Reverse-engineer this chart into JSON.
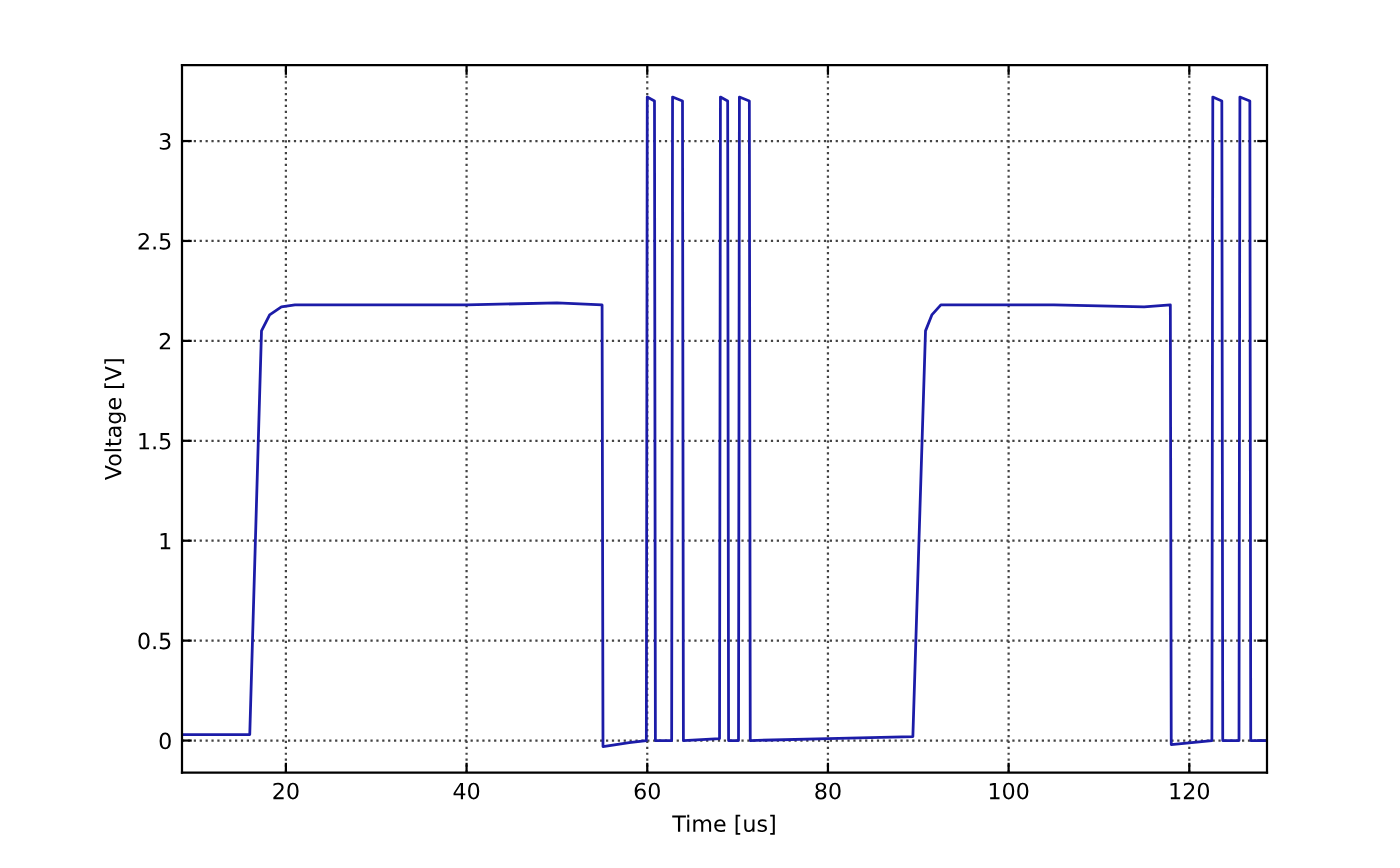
{
  "chart_data": {
    "type": "line",
    "xlabel": "Time [us]",
    "ylabel": "Voltage [V]",
    "xlim": [
      8.5,
      128.6
    ],
    "ylim": [
      -0.16,
      3.38
    ],
    "xticks": [
      20,
      40,
      60,
      80,
      100,
      120
    ],
    "yticks": [
      0,
      0.5,
      1,
      1.5,
      2,
      2.5,
      3
    ],
    "grid": true,
    "line_style": "solid",
    "marker": "none",
    "series": [
      {
        "color": "#1c1ca8",
        "x": [
          8.5,
          12,
          16.0,
          17.3,
          18.2,
          19.5,
          21,
          40,
          50,
          55.0,
          55.1,
          58,
          59.9,
          60.0,
          60.8,
          60.9,
          62.7,
          62.8,
          63.9,
          64.0,
          68.0,
          68.1,
          68.9,
          69.0,
          70.1,
          70.2,
          71.3,
          71.4,
          80,
          89.4,
          90.8,
          91.5,
          92.5,
          105,
          115,
          117.9,
          118.0,
          122.5,
          122.6,
          123.6,
          123.7,
          125.5,
          125.6,
          126.7,
          126.8,
          128.6
        ],
        "values": [
          0.03,
          0.03,
          0.03,
          2.05,
          2.13,
          2.17,
          2.18,
          2.18,
          2.19,
          2.18,
          -0.03,
          -0.01,
          0.0,
          3.22,
          3.2,
          0.0,
          0.0,
          3.22,
          3.2,
          0.0,
          0.01,
          3.22,
          3.2,
          0.0,
          0.0,
          3.22,
          3.2,
          0.0,
          0.01,
          0.02,
          2.05,
          2.13,
          2.18,
          2.18,
          2.17,
          2.18,
          -0.02,
          0.0,
          3.22,
          3.2,
          0.0,
          0.0,
          3.22,
          3.2,
          0.0,
          0.0
        ]
      }
    ]
  }
}
